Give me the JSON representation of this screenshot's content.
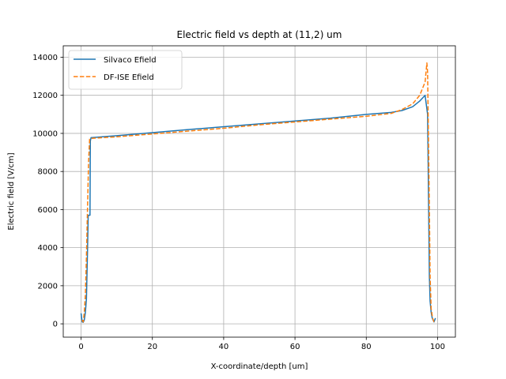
{
  "chart_data": {
    "type": "line",
    "title": "Electric field vs depth at (11,2) um",
    "xlabel": "X-coordinate/depth [um]",
    "ylabel": "Electric field [V/cm]",
    "xlim": [
      -5,
      105
    ],
    "ylim": [
      -700,
      14600
    ],
    "xticks": [
      0,
      20,
      40,
      60,
      80,
      100
    ],
    "yticks": [
      0,
      2000,
      4000,
      6000,
      8000,
      10000,
      12000,
      14000
    ],
    "grid": true,
    "legend_position": "top-left",
    "series": [
      {
        "name": "Silvaco Efield",
        "color": "#1f77b4",
        "style": "solid",
        "x": [
          0,
          0.3,
          0.6,
          0.9,
          1.2,
          1.5,
          1.8,
          2.0,
          2.1,
          2.3,
          2.5,
          2.6,
          2.8,
          3.0,
          10,
          20,
          30,
          40,
          50,
          60,
          70,
          80,
          87,
          90,
          93,
          95,
          96.5,
          97.2,
          97.5,
          97.7,
          97.9,
          98.2,
          98.5,
          99.0,
          99.4
        ],
        "y": [
          550,
          100,
          80,
          200,
          600,
          1300,
          3800,
          5700,
          5700,
          5700,
          5700,
          9600,
          9780,
          9780,
          9880,
          10040,
          10200,
          10350,
          10500,
          10650,
          10800,
          11000,
          11100,
          11200,
          11400,
          11700,
          12000,
          11000,
          6000,
          2500,
          1200,
          600,
          300,
          100,
          300
        ]
      },
      {
        "name": "DF-ISE Efield",
        "color": "#ff7f0e",
        "style": "dashed",
        "x": [
          0.3,
          0.6,
          0.9,
          1.2,
          1.5,
          1.8,
          2.1,
          2.4,
          2.7,
          3.0,
          10,
          20,
          30,
          40,
          50,
          60,
          70,
          80,
          87,
          90,
          93,
          95,
          96.5,
          97.0,
          97.2,
          97.5,
          97.7,
          97.9,
          98.2,
          98.6,
          99.0
        ],
        "y": [
          200,
          100,
          600,
          1500,
          3500,
          6000,
          8500,
          9700,
          9720,
          9740,
          9820,
          9970,
          10120,
          10270,
          10450,
          10600,
          10750,
          10900,
          11050,
          11250,
          11550,
          12000,
          12700,
          13700,
          13200,
          9000,
          6000,
          2500,
          800,
          300,
          100
        ]
      }
    ]
  }
}
